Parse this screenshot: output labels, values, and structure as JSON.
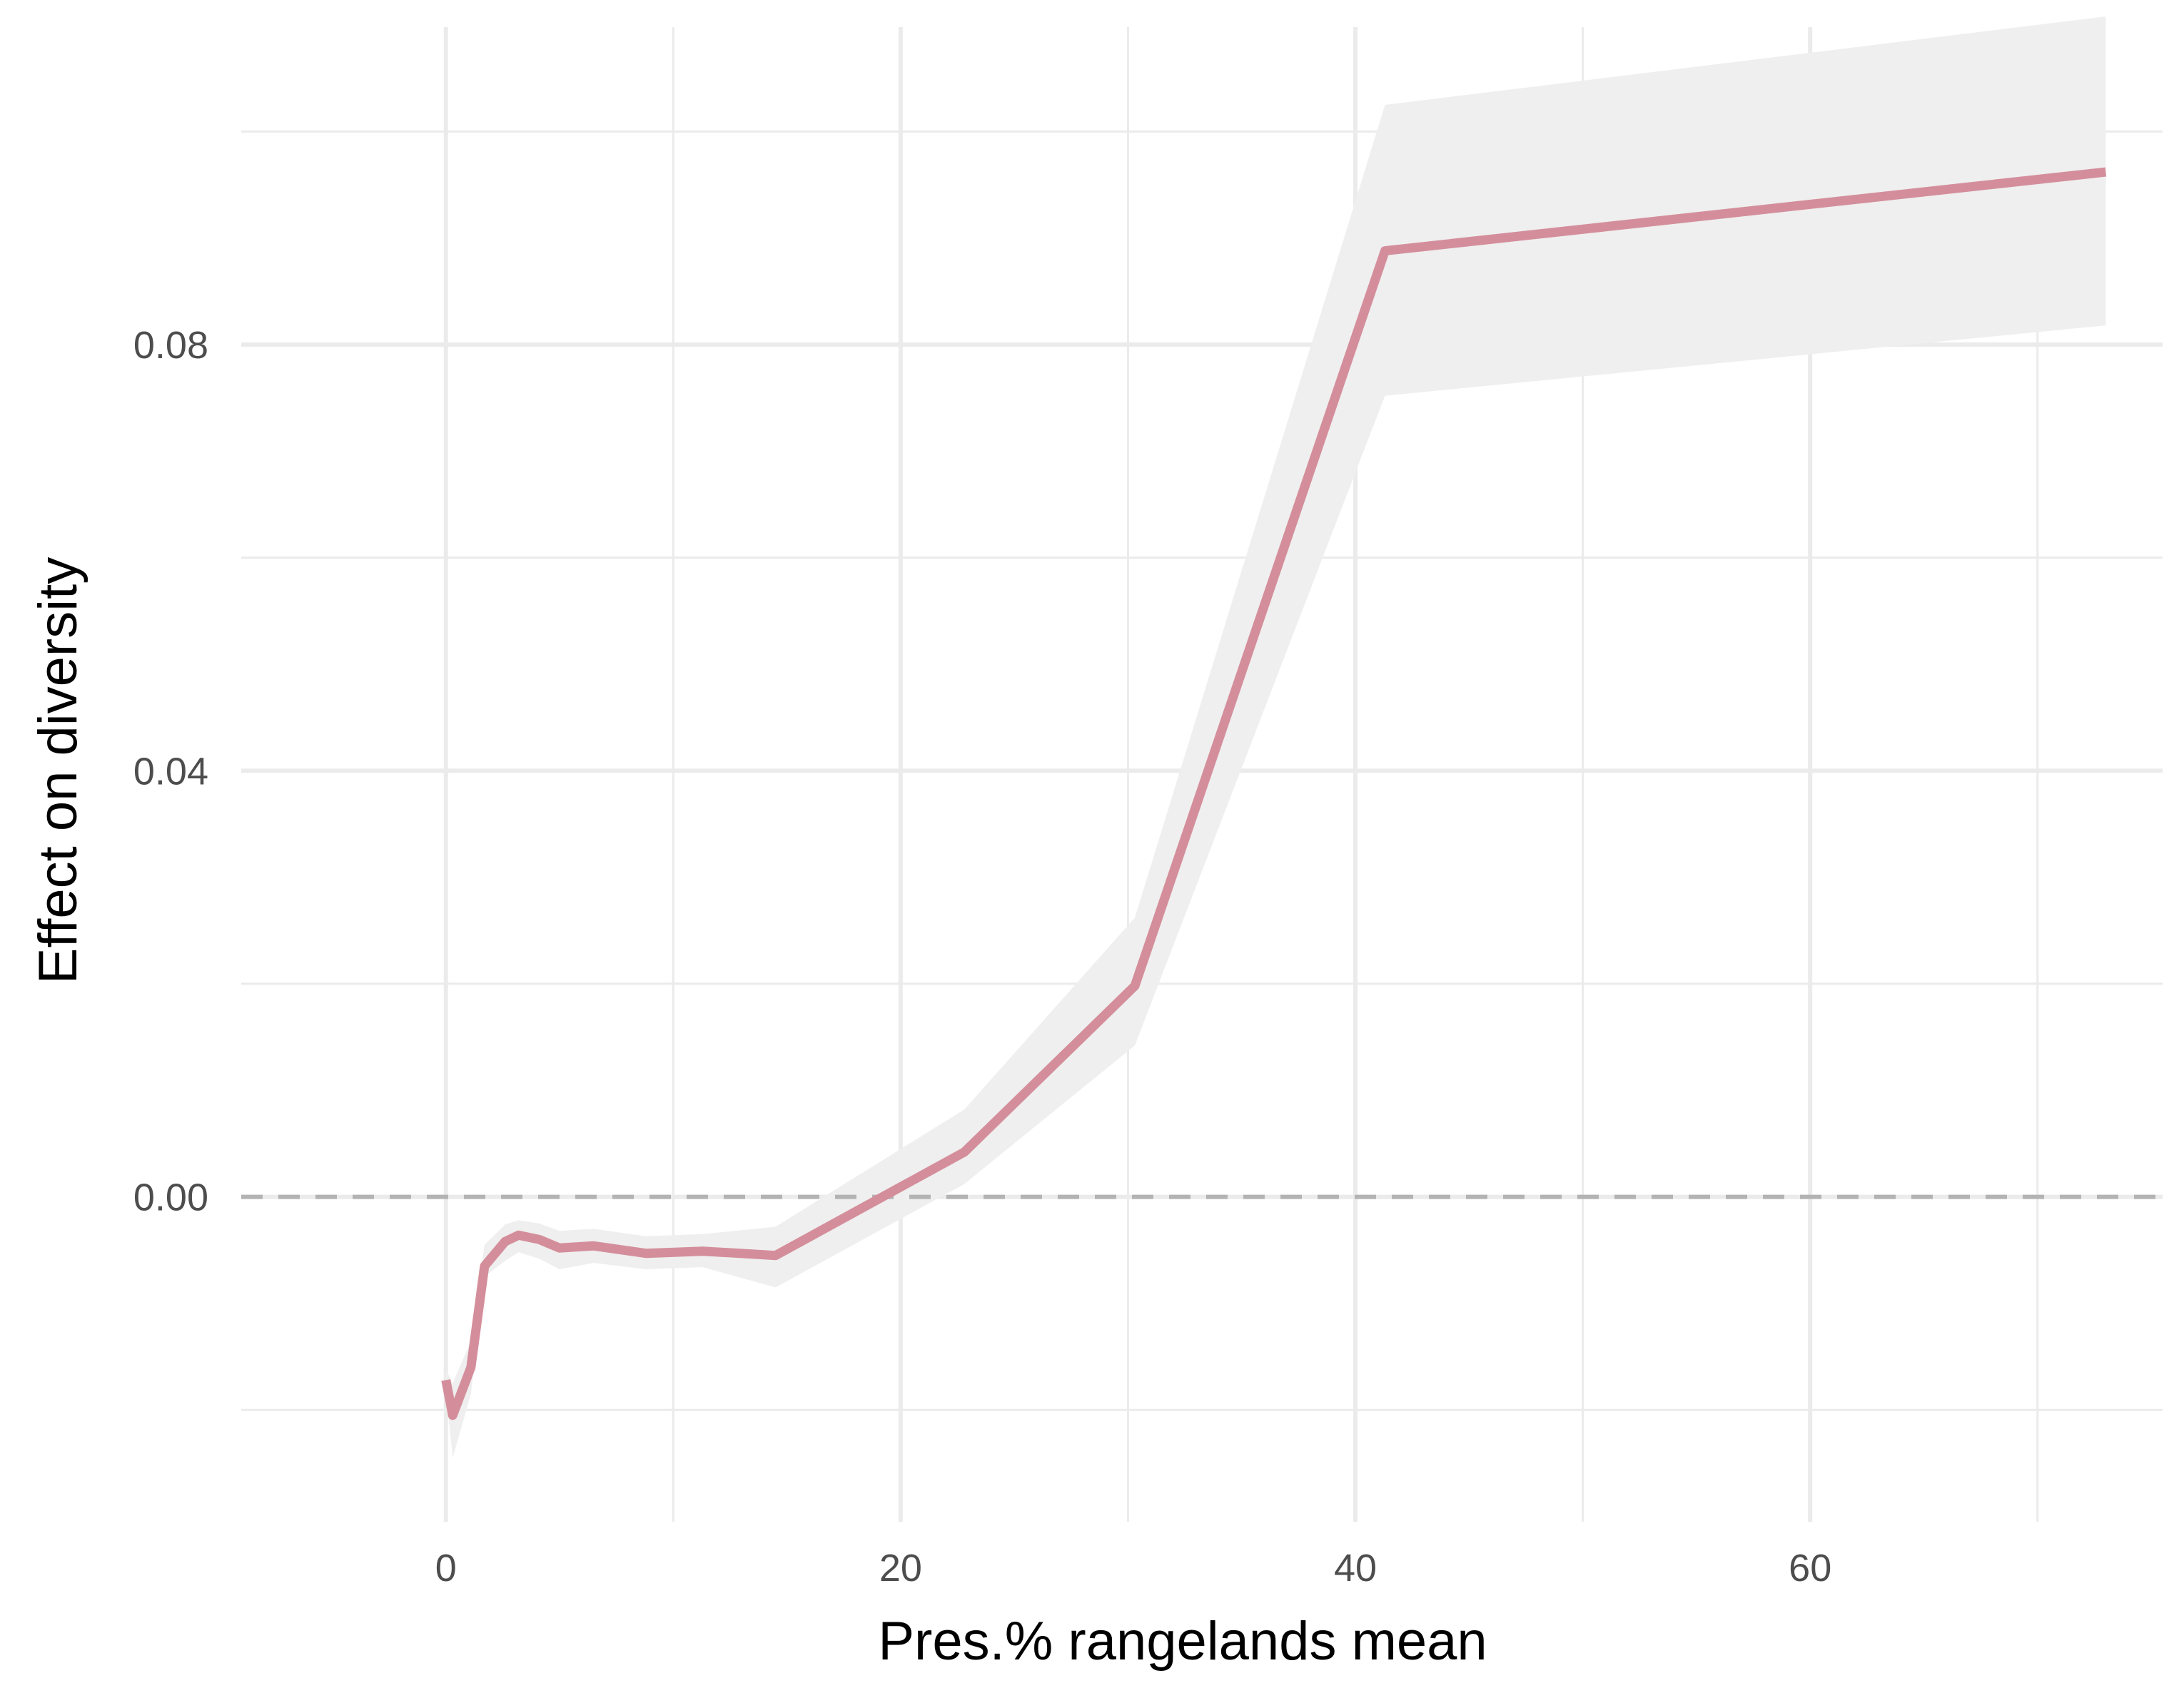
{
  "chart_data": {
    "type": "line",
    "title": "",
    "xlabel": "Pres.% rangelands mean",
    "ylabel": "Effect on diversity",
    "xlim": [
      -9,
      75.5
    ],
    "ylim": [
      -0.0305,
      0.1098
    ],
    "x_ticks": [
      0,
      20,
      40,
      60
    ],
    "x_tick_labels": [
      "0",
      "20",
      "40",
      "60"
    ],
    "x_minor_ticks": [
      10,
      30,
      50,
      70
    ],
    "y_ticks": [
      0.0,
      0.04,
      0.08
    ],
    "y_tick_labels": [
      "0.00",
      "0.04",
      "0.08"
    ],
    "y_minor_ticks": [
      -0.02,
      0.02,
      0.06,
      0.1
    ],
    "grid": true,
    "reference_line": {
      "y": 0,
      "style": "dashed",
      "color": "#b3b3b3"
    },
    "series": [
      {
        "color": "#d48e9b",
        "band_color": "#efefef",
        "points": [
          {
            "x": 0.0,
            "y": -0.0172,
            "lo": -0.0182,
            "hi": -0.0162
          },
          {
            "x": 0.3,
            "y": -0.0205,
            "lo": -0.0245,
            "hi": -0.0175
          },
          {
            "x": 1.1,
            "y": -0.016,
            "lo": -0.0185,
            "hi": -0.0135
          },
          {
            "x": 1.7,
            "y": -0.0065,
            "lo": -0.0075,
            "hi": -0.0045
          },
          {
            "x": 2.6,
            "y": -0.0042,
            "lo": -0.006,
            "hi": -0.0026
          },
          {
            "x": 3.2,
            "y": -0.0036,
            "lo": -0.0052,
            "hi": -0.0022
          },
          {
            "x": 4.1,
            "y": -0.004,
            "lo": -0.0058,
            "hi": -0.0025
          },
          {
            "x": 5.0,
            "y": -0.0048,
            "lo": -0.0068,
            "hi": -0.0032
          },
          {
            "x": 6.5,
            "y": -0.0046,
            "lo": -0.0062,
            "hi": -0.003
          },
          {
            "x": 8.8,
            "y": -0.0053,
            "lo": -0.0068,
            "hi": -0.0037
          },
          {
            "x": 11.3,
            "y": -0.0051,
            "lo": -0.0066,
            "hi": -0.0035
          },
          {
            "x": 14.5,
            "y": -0.0055,
            "lo": -0.0085,
            "hi": -0.0028
          },
          {
            "x": 22.8,
            "y": 0.0042,
            "lo": 0.0012,
            "hi": 0.0082
          },
          {
            "x": 30.3,
            "y": 0.0198,
            "lo": 0.0142,
            "hi": 0.0262
          },
          {
            "x": 41.3,
            "y": 0.0888,
            "lo": 0.0752,
            "hi": 0.1025
          },
          {
            "x": 73.0,
            "y": 0.0962,
            "lo": 0.0818,
            "hi": 0.1108
          }
        ]
      }
    ]
  }
}
